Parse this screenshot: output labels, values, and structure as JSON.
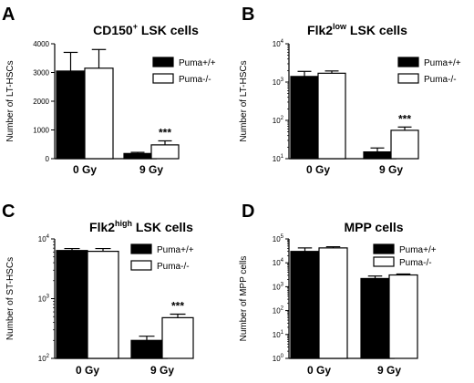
{
  "chart_data": [
    {
      "panel": "A",
      "type": "bar",
      "title": "CD150",
      "title_sup": "+",
      "title_rest": " LSK cells",
      "ylabel": "Number of LT-HSCs",
      "yscale": "linear",
      "ylim": [
        0,
        4000
      ],
      "yticks": [
        0,
        1000,
        2000,
        3000,
        4000
      ],
      "ytick_labels": [
        "0",
        "1000",
        "2000",
        "3000",
        "4000"
      ],
      "categories": [
        "0 Gy",
        "9 Gy"
      ],
      "series": [
        {
          "name": "Puma+/+",
          "color": "#000000",
          "values": [
            3050,
            180
          ],
          "errors": [
            650,
            40
          ]
        },
        {
          "name": "Puma-/-",
          "color": "#ffffff",
          "values": [
            3150,
            480
          ],
          "errors": [
            650,
            140
          ]
        }
      ],
      "annotations": [
        {
          "category": "9 Gy",
          "series": "Puma-/-",
          "text": "***"
        }
      ],
      "legend_position": "right"
    },
    {
      "panel": "B",
      "type": "bar",
      "title": "Flk2",
      "title_sup": "low",
      "title_rest": " LSK cells",
      "ylabel": "Number of LT-HSCs",
      "yscale": "log",
      "ylim": [
        10,
        10000
      ],
      "yticks": [
        10,
        100,
        1000,
        10000
      ],
      "ytick_labels": [
        [
          "10",
          "1"
        ],
        [
          "10",
          "2"
        ],
        [
          "10",
          "3"
        ],
        [
          "10",
          "4"
        ]
      ],
      "categories": [
        "0 Gy",
        "9 Gy"
      ],
      "series": [
        {
          "name": "Puma+/+",
          "color": "#000000",
          "values": [
            1400,
            15
          ],
          "errors": [
            500,
            4
          ]
        },
        {
          "name": "Puma-/-",
          "color": "#ffffff",
          "values": [
            1700,
            55
          ],
          "errors": [
            250,
            12
          ]
        }
      ],
      "annotations": [
        {
          "category": "9 Gy",
          "series": "Puma-/-",
          "text": "***"
        }
      ],
      "legend_position": "right"
    },
    {
      "panel": "C",
      "type": "bar",
      "title": "Flk2",
      "title_sup": "high",
      "title_rest": " LSK cells",
      "ylabel": "Number of ST-HSCs",
      "yscale": "log",
      "ylim": [
        100,
        10000
      ],
      "yticks": [
        100,
        1000,
        10000
      ],
      "ytick_labels": [
        [
          "10",
          "2"
        ],
        [
          "10",
          "3"
        ],
        [
          "10",
          "4"
        ]
      ],
      "categories": [
        "0 Gy",
        "9 Gy"
      ],
      "series": [
        {
          "name": "Puma+/+",
          "color": "#000000",
          "values": [
            6400,
            200
          ],
          "errors": [
            500,
            35
          ]
        },
        {
          "name": "Puma-/-",
          "color": "#ffffff",
          "values": [
            6200,
            480
          ],
          "errors": [
            700,
            70
          ]
        }
      ],
      "annotations": [
        {
          "category": "9 Gy",
          "series": "Puma-/-",
          "text": "***"
        }
      ],
      "legend_position": "right"
    },
    {
      "panel": "D",
      "type": "bar",
      "title": "MPP cells",
      "title_sup": "",
      "title_rest": "",
      "ylabel": "Number of MPP cells",
      "yscale": "log",
      "ylim": [
        1,
        100000
      ],
      "yticks": [
        1,
        10,
        100,
        1000,
        10000,
        100000
      ],
      "ytick_labels": [
        [
          "10",
          "0"
        ],
        [
          "10",
          "1"
        ],
        [
          "10",
          "2"
        ],
        [
          "10",
          "3"
        ],
        [
          "10",
          "4"
        ],
        [
          "10",
          "5"
        ]
      ],
      "categories": [
        "0 Gy",
        "9 Gy"
      ],
      "series": [
        {
          "name": "Puma+/+",
          "color": "#000000",
          "values": [
            30000,
            2200
          ],
          "errors": [
            12000,
            600
          ]
        },
        {
          "name": "Puma-/-",
          "color": "#ffffff",
          "values": [
            42000,
            3100
          ],
          "errors": [
            5000,
            300
          ]
        }
      ],
      "annotations": [],
      "legend_position": "right"
    }
  ]
}
